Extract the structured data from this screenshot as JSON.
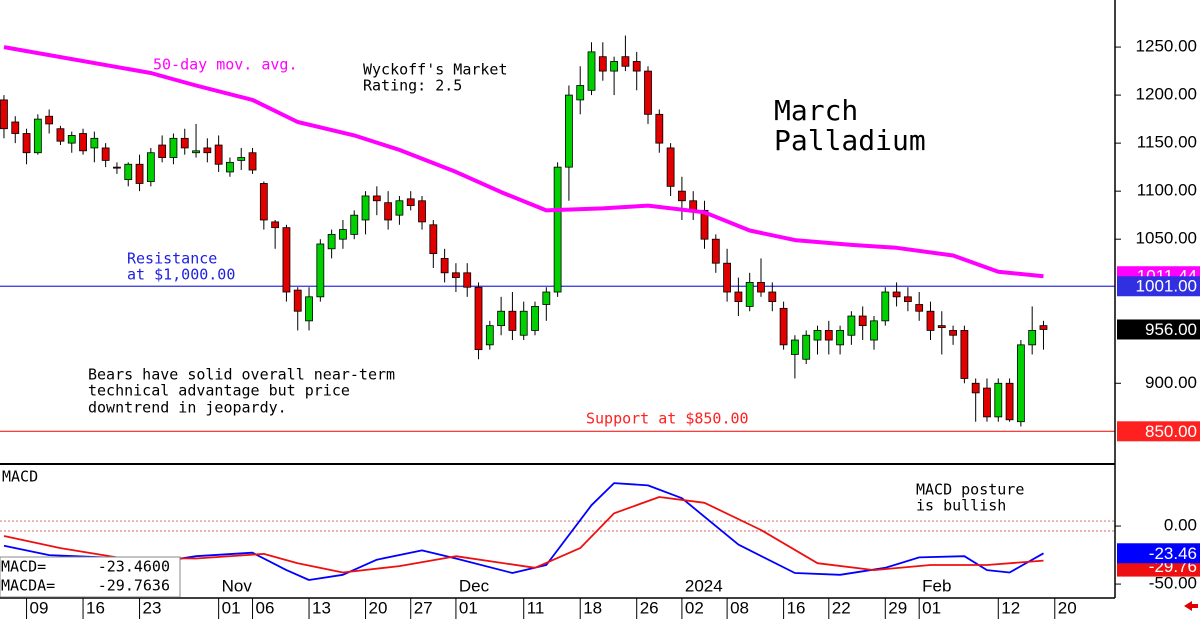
{
  "chart_data": [
    {
      "type": "candlestick",
      "title": [
        "March",
        "Palladium"
      ],
      "subtitle": [
        "Wyckoff's Market",
        "Rating: 2.5"
      ],
      "annotations": {
        "resistance": [
          "Resistance",
          "at $1,000.00"
        ],
        "note": [
          "Bears have solid overall near-term",
          "technical advantage but price",
          "downtrend in jeopardy."
        ],
        "support": "Support at $850.00"
      },
      "xlim": [
        -0.35,
        98.33
      ],
      "xticks": [
        {
          "value": 2,
          "label": "09"
        },
        {
          "value": 7,
          "label": "16"
        },
        {
          "value": 12,
          "label": "23"
        },
        {
          "value": 19,
          "label": "01"
        },
        {
          "value": 22,
          "label": "06"
        },
        {
          "value": 27,
          "label": "13"
        },
        {
          "value": 32,
          "label": "20"
        },
        {
          "value": 36,
          "label": "27"
        },
        {
          "value": 40,
          "label": "01"
        },
        {
          "value": 46,
          "label": "11"
        },
        {
          "value": 51,
          "label": "18"
        },
        {
          "value": 56,
          "label": "26"
        },
        {
          "value": 60,
          "label": "02"
        },
        {
          "value": 64,
          "label": "08"
        },
        {
          "value": 69,
          "label": "16"
        },
        {
          "value": 73,
          "label": "22"
        },
        {
          "value": 78,
          "label": "29"
        },
        {
          "value": 81,
          "label": "01"
        },
        {
          "value": 88,
          "label": "12"
        },
        {
          "value": 93,
          "label": "20"
        }
      ],
      "month_ticks": [
        {
          "value": 19,
          "label": "Nov"
        },
        {
          "value": 40,
          "label": "Dec"
        },
        {
          "value": 60,
          "label": "2024"
        },
        {
          "value": 81,
          "label": "Feb"
        }
      ],
      "ylim": [
        817,
        1299
      ],
      "yticks": [
        {
          "value": 900,
          "label": "900.00"
        },
        {
          "value": 1050,
          "label": "1050.00"
        },
        {
          "value": 1100,
          "label": "1100.00"
        },
        {
          "value": 1150,
          "label": "1150.00"
        },
        {
          "value": 1200,
          "label": "1200.00"
        },
        {
          "value": 1250,
          "label": "1250.00"
        }
      ],
      "up_color": "#00d000",
      "down_color": "#e00000",
      "open": [
        1195,
        1172,
        1160,
        1140,
        1178,
        1165,
        1150,
        1160,
        1145,
        1145,
        1125,
        1112,
        1128,
        1110,
        1148,
        1135,
        1155,
        1140,
        1145,
        1148,
        1120,
        1132,
        1140,
        1108,
        1068,
        1062,
        997,
        965,
        990,
        1040,
        1050,
        1055,
        1070,
        1095,
        1088,
        1075,
        1092,
        1090,
        1065,
        1030,
        1015,
        1015,
        1000,
        940,
        960,
        975,
        950,
        955,
        982,
        995,
        1125,
        1195,
        1205,
        1240,
        1225,
        1240,
        1235,
        1225,
        1180,
        1145,
        1100,
        1090,
        1080,
        1050,
        1025,
        995,
        980,
        1005,
        995,
        978,
        930,
        925,
        945,
        955,
        940,
        950,
        970,
        945,
        965,
        995,
        990,
        982,
        975,
        960,
        955,
        955,
        900,
        895,
        865,
        900,
        860,
        940,
        960
      ],
      "high": [
        1200,
        1178,
        1165,
        1180,
        1185,
        1168,
        1162,
        1165,
        1162,
        1150,
        1130,
        1130,
        1138,
        1145,
        1158,
        1160,
        1165,
        1170,
        1155,
        1158,
        1135,
        1145,
        1145,
        1110,
        1070,
        1065,
        1000,
        1000,
        1050,
        1060,
        1070,
        1080,
        1100,
        1105,
        1100,
        1095,
        1100,
        1095,
        1070,
        1040,
        1025,
        1025,
        1005,
        965,
        990,
        995,
        985,
        985,
        1000,
        1130,
        1210,
        1230,
        1255,
        1255,
        1240,
        1262,
        1245,
        1230,
        1185,
        1150,
        1115,
        1100,
        1090,
        1055,
        1040,
        1010,
        1015,
        1030,
        1005,
        985,
        950,
        955,
        960,
        965,
        960,
        975,
        980,
        970,
        1000,
        1005,
        1000,
        995,
        985,
        975,
        960,
        960,
        905,
        905,
        905,
        905,
        945,
        980,
        965
      ],
      "low": [
        1155,
        1150,
        1128,
        1138,
        1160,
        1148,
        1140,
        1138,
        1130,
        1125,
        1118,
        1105,
        1100,
        1105,
        1130,
        1128,
        1138,
        1135,
        1130,
        1120,
        1115,
        1122,
        1118,
        1060,
        1040,
        985,
        955,
        955,
        985,
        1030,
        1040,
        1050,
        1055,
        1075,
        1060,
        1065,
        1080,
        1060,
        1020,
        1005,
        995,
        990,
        925,
        935,
        950,
        945,
        945,
        950,
        965,
        990,
        1090,
        1180,
        1200,
        1215,
        1200,
        1225,
        1205,
        1170,
        1140,
        1095,
        1070,
        1070,
        1040,
        1015,
        985,
        970,
        975,
        990,
        975,
        935,
        905,
        920,
        930,
        930,
        930,
        940,
        945,
        935,
        960,
        980,
        975,
        965,
        945,
        930,
        940,
        900,
        860,
        860,
        860,
        860,
        855,
        930,
        935
      ],
      "close": [
        1165,
        1160,
        1140,
        1175,
        1170,
        1152,
        1158,
        1142,
        1155,
        1132,
        1124,
        1128,
        1108,
        1140,
        1135,
        1155,
        1145,
        1142,
        1140,
        1128,
        1130,
        1135,
        1122,
        1070,
        1062,
        995,
        975,
        990,
        1045,
        1055,
        1060,
        1075,
        1095,
        1090,
        1070,
        1090,
        1085,
        1068,
        1035,
        1015,
        1010,
        1000,
        935,
        960,
        975,
        955,
        975,
        980,
        995,
        1125,
        1200,
        1210,
        1245,
        1225,
        1235,
        1230,
        1225,
        1180,
        1150,
        1105,
        1090,
        1080,
        1050,
        1025,
        995,
        985,
        1005,
        995,
        985,
        940,
        945,
        950,
        955,
        945,
        955,
        970,
        960,
        965,
        995,
        990,
        985,
        975,
        955,
        958,
        950,
        905,
        890,
        865,
        900,
        862,
        940,
        955,
        956
      ],
      "series": [
        {
          "name": "50-day mov. avg.",
          "color": "#ff00ff",
          "x": [
            0,
            13,
            17,
            22,
            26,
            31,
            35,
            40,
            44,
            48,
            53,
            57,
            62,
            66,
            70,
            75,
            79,
            84,
            88,
            92
          ],
          "values": [
            1250,
            1223,
            1210,
            1195,
            1172,
            1158,
            1143,
            1120,
            1099,
            1080,
            1082,
            1085,
            1078,
            1059,
            1049,
            1044,
            1041,
            1033,
            1016,
            1011.44
          ],
          "end_label": "1011.44"
        }
      ],
      "hlines": [
        {
          "value": 1001,
          "color": "#3030e0",
          "label": "1001.00"
        },
        {
          "value": 850,
          "color": "#ff2020",
          "label": "850.00"
        }
      ],
      "last": {
        "value": 956,
        "label": "956.00"
      }
    },
    {
      "type": "line",
      "title": "MACD",
      "annotation": [
        "MACD posture",
        "is bullish"
      ],
      "xlim": [
        -0.35,
        98.33
      ],
      "ylim": [
        -62,
        52.6
      ],
      "yticks": [
        {
          "value": 0,
          "label": "0.00"
        },
        {
          "value": -50,
          "label": "-50.00"
        }
      ],
      "hlines": [
        {
          "value": 4.3,
          "color": "#e08080"
        },
        {
          "value": -4.3,
          "color": "#e08080"
        }
      ],
      "series": [
        {
          "name": "MACD=",
          "color": "#0000ff",
          "x": [
            0,
            4,
            9,
            13,
            17,
            22,
            25,
            27,
            30,
            33,
            37,
            40,
            45,
            48,
            52,
            54,
            57,
            60,
            65,
            70,
            74,
            78,
            81,
            85,
            87,
            89,
            92
          ],
          "values": [
            -17,
            -25,
            -27,
            -32,
            -26,
            -23,
            -38,
            -46.5,
            -42,
            -29,
            -21,
            -28,
            -40.5,
            -33.6,
            18,
            37,
            35,
            24,
            -16,
            -40.5,
            -42,
            -36,
            -27,
            -26,
            -38,
            -40,
            -23.46
          ],
          "legend_value": "-23.4600",
          "end_label": "-23.46"
        },
        {
          "name": "MACDA=",
          "color": "#ee1010",
          "x": [
            0,
            5,
            10,
            17,
            23,
            26,
            30,
            35,
            40,
            47,
            51,
            54,
            58,
            62,
            67,
            72,
            77,
            82,
            87,
            92
          ],
          "values": [
            -8.6,
            -19,
            -27,
            -28,
            -24,
            -32,
            -40,
            -34.5,
            -26,
            -36,
            -19,
            11,
            25,
            20,
            -3.4,
            -32,
            -38,
            -33.6,
            -33.6,
            -29.76
          ],
          "legend_value": "-29.7636",
          "end_label": "-29.76"
        }
      ]
    }
  ]
}
